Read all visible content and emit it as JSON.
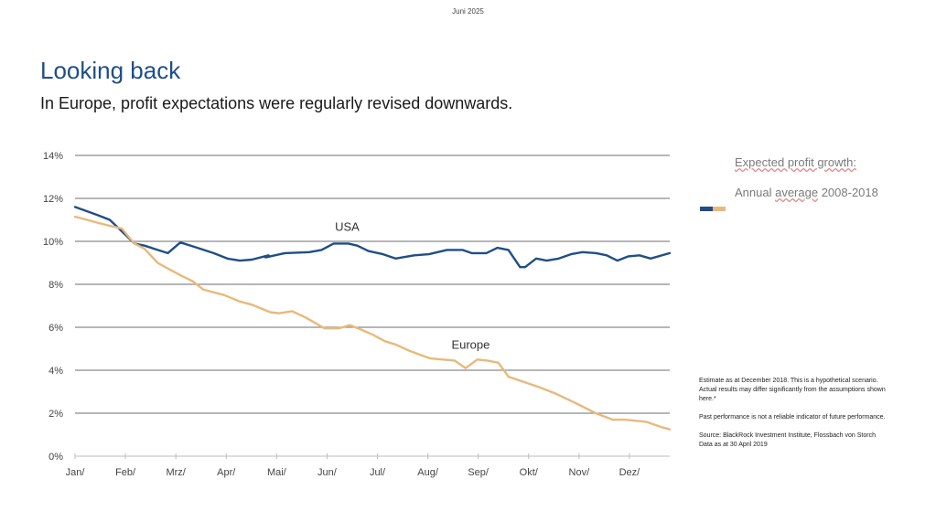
{
  "header": {
    "date": "Juni 2025"
  },
  "slide": {
    "title": "Looking back",
    "subtitle": "In Europe, profit expectations were regularly revised downwards."
  },
  "legend": {
    "heading": "Expected profit growth:",
    "sub_prefix": "Annual ",
    "sub_underlined": "average",
    "sub_suffix": " 2008-2018",
    "colors": {
      "usa": "#1f4e87",
      "europe": "#e8b97a"
    }
  },
  "notes": {
    "estimate": "Estimate as at December 2018. This is a hypothetical scenario. Actual results may differ significantly from the assumptions shown here.*",
    "past": "Past performance is not a reliable indicator of future performance.",
    "source_line1": "Source: BlackRock Investment Institute,     Flossbach von Storch",
    "source_line2": "Data as at 30 April 2019"
  },
  "chart_data": {
    "type": "line",
    "title": "",
    "xlabel": "",
    "ylabel": "",
    "x_unit": "months since start of year",
    "x_ticks": [
      "Jan/",
      "Feb/",
      "Mrz/",
      "Apr/",
      "Mai/",
      "Jun/",
      "Jul/",
      "Aug/",
      "Sep/",
      "Okt/",
      "Nov/",
      "Dez/"
    ],
    "xlim": [
      0,
      11.8
    ],
    "y_ticks": [
      "0%",
      "2%",
      "4%",
      "6%",
      "8%",
      "10%",
      "12%",
      "14%"
    ],
    "ylim": [
      0,
      14
    ],
    "grid": true,
    "legend_position": "right",
    "series": [
      {
        "name": "USA",
        "color": "#1f4e87",
        "label": "USA",
        "label_at": [
          5.4,
          10.5
        ],
        "x": [
          0,
          0.24,
          0.47,
          0.69,
          0.87,
          1.0,
          1.18,
          1.38,
          1.64,
          1.84,
          2.09,
          2.36,
          2.75,
          3.02,
          3.27,
          3.51,
          3.84,
          3.78,
          4.16,
          4.65,
          4.89,
          5.13,
          5.42,
          5.6,
          5.82,
          6.11,
          6.36,
          6.73,
          7.02,
          7.38,
          7.69,
          7.87,
          8.16,
          8.38,
          8.6,
          8.83,
          8.93,
          9.15,
          9.36,
          9.6,
          9.84,
          10.07,
          10.34,
          10.55,
          10.76,
          10.98,
          11.2,
          11.42,
          11.8
        ],
        "values": [
          11.6,
          11.4,
          11.2,
          11.0,
          10.6,
          10.3,
          9.9,
          9.8,
          9.6,
          9.45,
          9.95,
          9.75,
          9.45,
          9.2,
          9.1,
          9.15,
          9.35,
          9.25,
          9.45,
          9.5,
          9.6,
          9.9,
          9.9,
          9.8,
          9.55,
          9.4,
          9.2,
          9.35,
          9.4,
          9.6,
          9.6,
          9.45,
          9.45,
          9.7,
          9.6,
          8.8,
          8.8,
          9.2,
          9.1,
          9.2,
          9.4,
          9.5,
          9.45,
          9.35,
          9.1,
          9.3,
          9.35,
          9.2,
          9.45
        ]
      },
      {
        "name": "Europe",
        "color": "#e8b97a",
        "label": "Europe",
        "label_at": [
          7.85,
          5.0
        ],
        "x": [
          0,
          0.24,
          0.47,
          0.73,
          0.93,
          1.05,
          1.18,
          1.38,
          1.64,
          1.87,
          2.11,
          2.33,
          2.55,
          2.96,
          3.27,
          3.51,
          3.87,
          4.05,
          4.31,
          4.58,
          4.95,
          5.24,
          5.45,
          5.67,
          5.91,
          6.15,
          6.36,
          6.64,
          7.05,
          7.53,
          7.75,
          7.98,
          8.18,
          8.4,
          8.6,
          8.85,
          9.22,
          9.55,
          9.95,
          10.33,
          10.67,
          10.91,
          11.33,
          11.64,
          11.8
        ],
        "values": [
          11.15,
          11.0,
          10.85,
          10.7,
          10.6,
          10.25,
          9.9,
          9.65,
          9.0,
          8.7,
          8.4,
          8.15,
          7.75,
          7.5,
          7.2,
          7.05,
          6.7,
          6.65,
          6.75,
          6.45,
          5.95,
          5.95,
          6.1,
          5.9,
          5.65,
          5.35,
          5.2,
          4.9,
          4.55,
          4.45,
          4.1,
          4.5,
          4.45,
          4.35,
          3.7,
          3.5,
          3.2,
          2.9,
          2.45,
          2.0,
          1.7,
          1.7,
          1.6,
          1.35,
          1.25
        ]
      }
    ]
  }
}
